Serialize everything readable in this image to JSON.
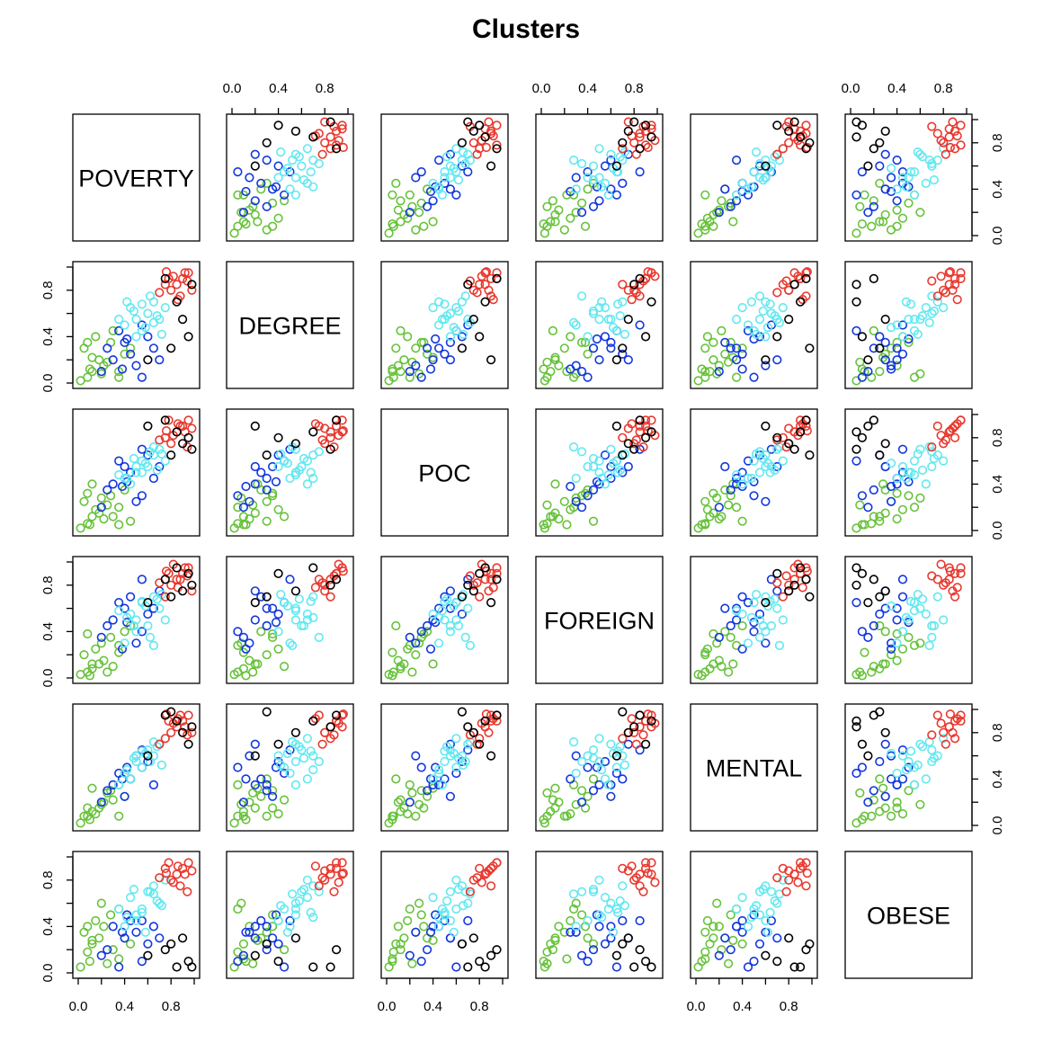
{
  "chart_data": {
    "type": "scatter",
    "title": "Clusters",
    "variables": [
      "POVERTY",
      "DEGREE",
      "POC",
      "FOREIGN",
      "MENTAL",
      "OBESE"
    ],
    "axis_range": [
      0,
      1
    ],
    "ticks": {
      "minor": [
        0.0,
        0.2,
        0.4,
        0.6,
        0.8,
        1.0
      ],
      "labeled": [
        0.0,
        0.4,
        0.8
      ],
      "labels": [
        "0.0",
        "0.4",
        "0.8"
      ]
    },
    "clusters": [
      {
        "color": "#67c23a",
        "points": [
          [
            0.08,
            0.05,
            0.06,
            0.05,
            0.08,
            0.18
          ],
          [
            0.12,
            0.1,
            0.12,
            0.08,
            0.12,
            0.25
          ],
          [
            0.18,
            0.2,
            0.15,
            0.12,
            0.15,
            0.3
          ],
          [
            0.05,
            0.3,
            0.25,
            0.2,
            0.08,
            0.35
          ],
          [
            0.22,
            0.15,
            0.1,
            0.15,
            0.2,
            0.4
          ],
          [
            0.28,
            0.35,
            0.3,
            0.35,
            0.3,
            0.5
          ],
          [
            0.1,
            0.12,
            0.05,
            0.02,
            0.05,
            0.1
          ],
          [
            0.35,
            0.05,
            0.2,
            0.28,
            0.35,
            0.55
          ],
          [
            0.15,
            0.4,
            0.18,
            0.25,
            0.1,
            0.45
          ],
          [
            0.4,
            0.25,
            0.35,
            0.4,
            0.25,
            0.3
          ],
          [
            0.02,
            0.02,
            0.02,
            0.03,
            0.02,
            0.05
          ],
          [
            0.3,
            0.45,
            0.12,
            0.1,
            0.22,
            0.2
          ],
          [
            0.2,
            0.08,
            0.28,
            0.3,
            0.18,
            0.6
          ],
          [
            0.45,
            0.3,
            0.08,
            0.45,
            0.4,
            0.25
          ],
          [
            0.25,
            0.18,
            0.22,
            0.05,
            0.28,
            0.08
          ],
          [
            0.08,
            0.35,
            0.32,
            0.38,
            0.15,
            0.4
          ],
          [
            0.35,
            0.1,
            0.05,
            0.22,
            0.08,
            0.12
          ],
          [
            0.12,
            0.22,
            0.4,
            0.12,
            0.32,
            0.28
          ]
        ]
      },
      {
        "color": "#1236dd",
        "points": [
          [
            0.3,
            0.2,
            0.4,
            0.5,
            0.35,
            0.4
          ],
          [
            0.4,
            0.35,
            0.55,
            0.6,
            0.25,
            0.3
          ],
          [
            0.55,
            0.05,
            0.3,
            0.4,
            0.5,
            0.1
          ],
          [
            0.45,
            0.25,
            0.5,
            0.7,
            0.4,
            0.45
          ],
          [
            0.6,
            0.4,
            0.65,
            0.55,
            0.55,
            0.25
          ],
          [
            0.25,
            0.3,
            0.35,
            0.45,
            0.3,
            0.2
          ],
          [
            0.5,
            0.15,
            0.25,
            0.3,
            0.6,
            0.35
          ],
          [
            0.35,
            0.45,
            0.6,
            0.65,
            0.45,
            0.05
          ],
          [
            0.65,
            0.3,
            0.45,
            0.6,
            0.35,
            0.4
          ],
          [
            0.2,
            0.1,
            0.2,
            0.35,
            0.2,
            0.15
          ],
          [
            0.7,
            0.2,
            0.55,
            0.75,
            0.7,
            0.3
          ],
          [
            0.42,
            0.38,
            0.42,
            0.48,
            0.5,
            0.5
          ],
          [
            0.55,
            0.5,
            0.7,
            0.85,
            0.65,
            0.45
          ],
          [
            0.38,
            0.12,
            0.38,
            0.25,
            0.4,
            0.35
          ]
        ]
      },
      {
        "color": "#63e8f0",
        "points": [
          [
            0.5,
            0.55,
            0.5,
            0.5,
            0.55,
            0.5
          ],
          [
            0.6,
            0.6,
            0.55,
            0.45,
            0.65,
            0.7
          ],
          [
            0.55,
            0.45,
            0.6,
            0.65,
            0.5,
            0.55
          ],
          [
            0.65,
            0.7,
            0.65,
            0.7,
            0.6,
            0.75
          ],
          [
            0.4,
            0.5,
            0.45,
            0.3,
            0.45,
            0.4
          ],
          [
            0.7,
            0.55,
            0.7,
            0.6,
            0.7,
            0.6
          ],
          [
            0.45,
            0.65,
            0.4,
            0.55,
            0.4,
            0.65
          ],
          [
            0.75,
            0.65,
            0.6,
            0.5,
            0.75,
            0.8
          ],
          [
            0.5,
            0.4,
            0.55,
            0.4,
            0.6,
            0.45
          ],
          [
            0.62,
            0.75,
            0.68,
            0.35,
            0.55,
            0.7
          ],
          [
            0.35,
            0.55,
            0.48,
            0.58,
            0.35,
            0.55
          ],
          [
            0.58,
            0.48,
            0.58,
            0.62,
            0.62,
            0.35
          ],
          [
            0.68,
            0.58,
            0.52,
            0.68,
            0.68,
            0.62
          ],
          [
            0.48,
            0.62,
            0.62,
            0.45,
            0.58,
            0.72
          ],
          [
            0.72,
            0.42,
            0.66,
            0.72,
            0.52,
            0.58
          ],
          [
            0.42,
            0.7,
            0.45,
            0.52,
            0.48,
            0.48
          ],
          [
            0.65,
            0.52,
            0.72,
            0.28,
            0.72,
            0.68
          ],
          [
            0.55,
            0.68,
            0.5,
            0.66,
            0.64,
            0.52
          ]
        ]
      },
      {
        "color": "#e8392f",
        "points": [
          [
            0.85,
            0.85,
            0.85,
            0.85,
            0.85,
            0.85
          ],
          [
            0.9,
            0.9,
            0.9,
            0.9,
            0.9,
            0.9
          ],
          [
            0.8,
            0.8,
            0.75,
            0.8,
            0.8,
            0.8
          ],
          [
            0.95,
            0.95,
            0.95,
            0.95,
            0.95,
            0.95
          ],
          [
            0.75,
            0.85,
            0.8,
            0.7,
            0.75,
            0.9
          ],
          [
            0.88,
            0.75,
            0.9,
            0.85,
            0.95,
            0.75
          ],
          [
            0.92,
            0.95,
            0.85,
            0.95,
            0.85,
            0.85
          ],
          [
            0.78,
            0.9,
            0.95,
            0.9,
            0.9,
            0.95
          ],
          [
            0.98,
            0.8,
            0.88,
            0.75,
            0.8,
            0.88
          ],
          [
            0.82,
            0.92,
            0.82,
            0.98,
            0.88,
            0.78
          ],
          [
            0.7,
            0.78,
            0.78,
            0.82,
            0.7,
            0.82
          ],
          [
            0.86,
            0.72,
            0.92,
            0.78,
            0.92,
            0.92
          ],
          [
            0.94,
            0.88,
            0.72,
            0.88,
            0.78,
            0.7
          ],
          [
            0.76,
            0.96,
            0.86,
            0.92,
            0.96,
            0.86
          ]
        ]
      },
      {
        "color": "#000000",
        "points": [
          [
            0.85,
            0.7,
            0.85,
            0.95,
            0.9,
            0.05
          ],
          [
            0.95,
            0.4,
            0.8,
            0.9,
            0.7,
            0.1
          ],
          [
            0.75,
            0.9,
            0.95,
            0.85,
            0.95,
            0.2
          ],
          [
            0.9,
            0.55,
            0.75,
            0.75,
            0.8,
            0.3
          ],
          [
            0.6,
            0.2,
            0.9,
            0.65,
            0.6,
            0.15
          ],
          [
            0.98,
            0.85,
            0.7,
            0.8,
            0.85,
            0.05
          ],
          [
            0.8,
            0.3,
            0.65,
            0.7,
            0.98,
            0.25
          ]
        ]
      }
    ]
  }
}
